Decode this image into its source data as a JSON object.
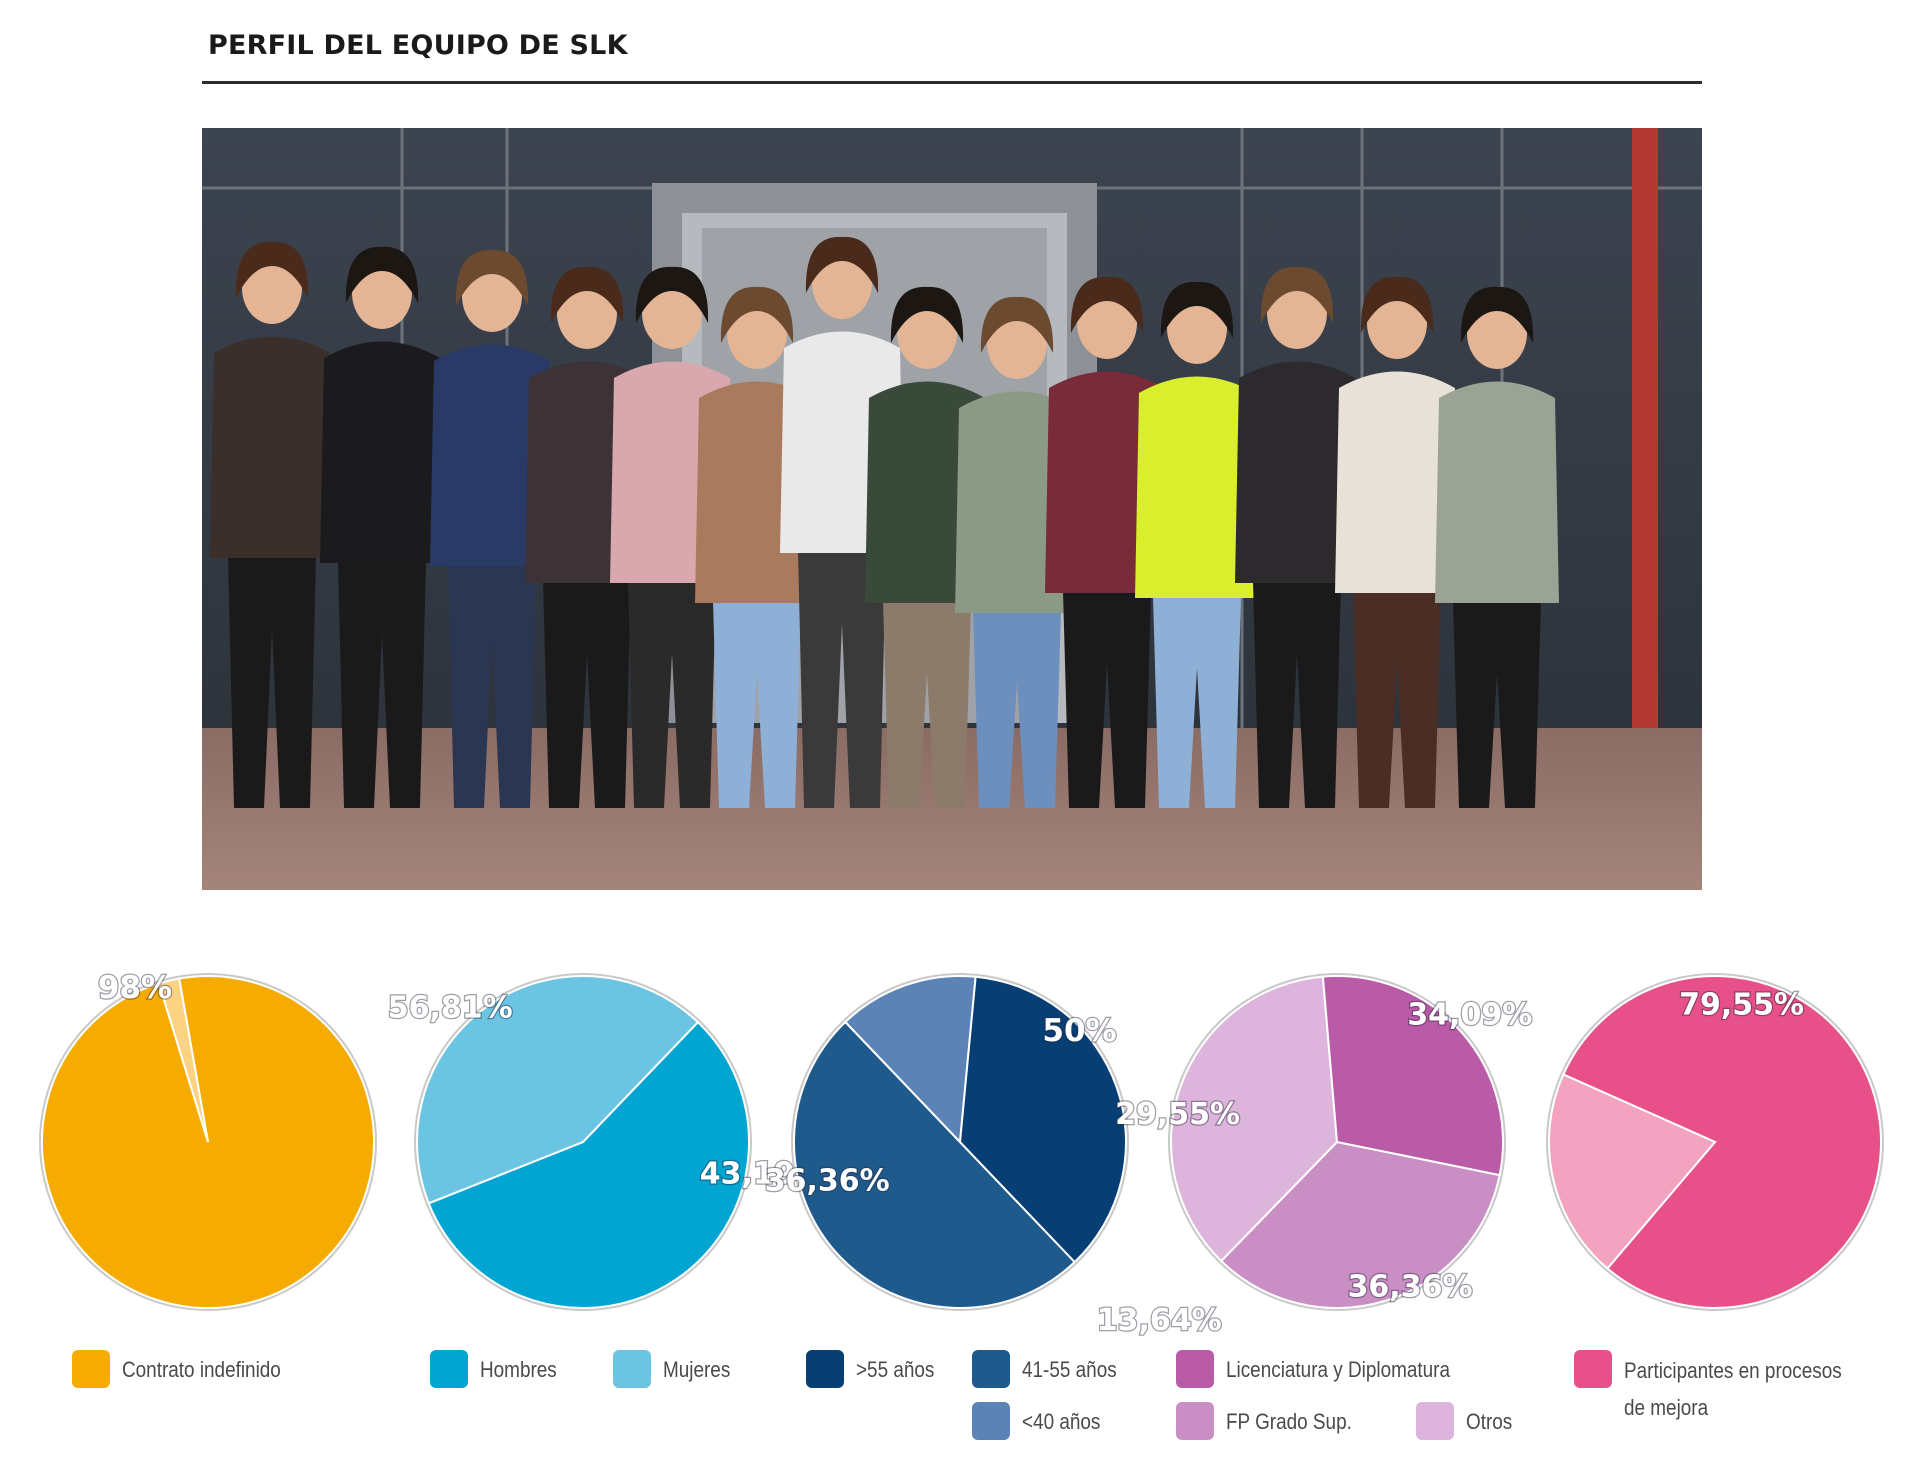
{
  "title": "PERFIL DEL EQUIPO DE SLK",
  "photo": {
    "subject": "team-photo"
  },
  "colors": {
    "contrato": "#f5ab00",
    "contrato_rest": "#fbd383",
    "hombres": "#00a5d2",
    "mujeres": "#6cc4e3",
    "mayor55": "#073f75",
    "entre41_55": "#1f5a8d",
    "menor40": "#5b83b5",
    "licenciatura": "#ba5ba7",
    "fp": "#c98ec4",
    "otros": "#ddb4db",
    "participantes": "#e8508a",
    "participantes_rest": "#f3a2bf"
  },
  "chart_data": [
    {
      "type": "pie",
      "slices": [
        {
          "name": "Contrato indefinido",
          "value": 98,
          "label": "98%",
          "color": "#f5ab00"
        },
        {
          "name": "",
          "value": 2,
          "label": "",
          "color": "#fbd383"
        }
      ]
    },
    {
      "type": "pie",
      "slices": [
        {
          "name": "Hombres",
          "value": 56.81,
          "label": "56,81%",
          "color": "#00a5d2"
        },
        {
          "name": "Mujeres",
          "value": 43.19,
          "label": "43,19%",
          "color": "#6cc4e3"
        }
      ]
    },
    {
      "type": "pie",
      "slices": [
        {
          "name": "41-55 años",
          "value": 50,
          "label": "50%",
          "color": "#1f5a8d"
        },
        {
          "name": "<40 años",
          "value": 13.64,
          "label": "13,64%",
          "color": "#5b83b5"
        },
        {
          "name": ">55 años",
          "value": 36.36,
          "label": "36,36%",
          "color": "#073f75"
        }
      ]
    },
    {
      "type": "pie",
      "slices": [
        {
          "name": "FP Grado Sup.",
          "value": 34.09,
          "label": "34,09%",
          "color": "#c98ec4"
        },
        {
          "name": "Otros",
          "value": 36.36,
          "label": "36,36%",
          "color": "#ddb4db"
        },
        {
          "name": "Licenciatura y Diplomatura",
          "value": 29.55,
          "label": "29,55%",
          "color": "#ba5ba7"
        }
      ]
    },
    {
      "type": "pie",
      "slices": [
        {
          "name": "Participantes en procesos de mejora",
          "value": 79.55,
          "label": "79,55%",
          "color": "#e8508a"
        },
        {
          "name": "",
          "value": 20.45,
          "label": "",
          "color": "#f3a2bf"
        }
      ]
    }
  ],
  "legend": {
    "contrato": "Contrato indefinido",
    "hombres": "Hombres",
    "mujeres": "Mujeres",
    "mayor55": ">55 años",
    "entre41_55": "41-55 años",
    "menor40": "<40 años",
    "licenciatura": "Licenciatura y Diplomatura",
    "fp": "FP Grado Sup.",
    "otros": "Otros",
    "participantes": "Participantes en procesos de mejora"
  }
}
